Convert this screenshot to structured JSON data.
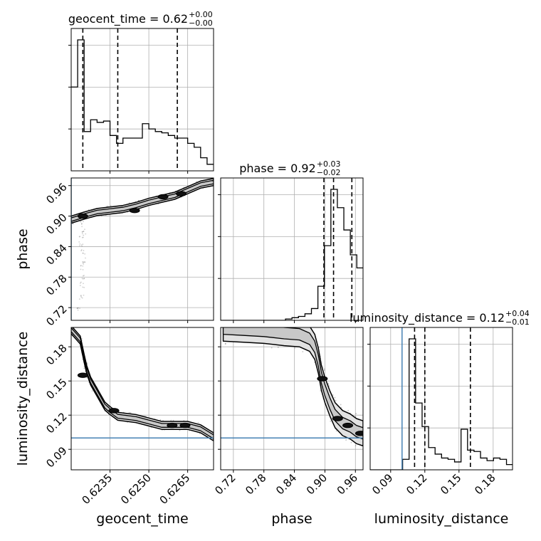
{
  "chart_data": {
    "type": "corner",
    "parameters": [
      "geocent_time",
      "phase",
      "luminosity_distance"
    ],
    "titles": [
      {
        "param": "geocent_time",
        "prefix": "geocent_time = 0.62",
        "plus": "+0.00",
        "minus": "−0.00"
      },
      {
        "param": "phase",
        "prefix": "phase = 0.92",
        "plus": "+0.03",
        "minus": "−0.02"
      },
      {
        "param": "luminosity_distance",
        "prefix": "luminosity_distance = 0.12",
        "plus": "+0.04",
        "minus": "−0.01"
      }
    ],
    "axis_labels": {
      "x": [
        "geocent_time",
        "phase",
        "luminosity_distance"
      ],
      "y": [
        "phase",
        "luminosity_distance"
      ]
    },
    "ranges": {
      "geocent_time": [
        0.622,
        0.6275
      ],
      "phase": [
        0.695,
        0.975
      ],
      "luminosity_distance": [
        0.072,
        0.197
      ]
    },
    "ticks": {
      "geocent_time": {
        "values": [
          0.6235,
          0.625,
          0.6265
        ],
        "labels": [
          "0.6235",
          "0.6250",
          "0.6265"
        ]
      },
      "phase": {
        "values": [
          0.72,
          0.78,
          0.84,
          0.9,
          0.96
        ],
        "labels": [
          "0.72",
          "0.78",
          "0.84",
          "0.90",
          "0.96"
        ]
      },
      "luminosity_distance": {
        "values": [
          0.09,
          0.12,
          0.15,
          0.18
        ],
        "labels": [
          "0.09",
          "0.12",
          "0.15",
          "0.18"
        ]
      }
    },
    "grid": true,
    "histograms": [
      {
        "param": "geocent_time",
        "edges": [
          0.622,
          0.62225,
          0.6225,
          0.62275,
          0.623,
          0.62325,
          0.6235,
          0.62375,
          0.624,
          0.62425,
          0.6245,
          0.62475,
          0.625,
          0.62525,
          0.6255,
          0.62575,
          0.626,
          0.62625,
          0.6265,
          0.62675,
          0.627,
          0.62725,
          0.6275
        ],
        "counts": [
          0.64,
          1.0,
          0.3,
          0.39,
          0.37,
          0.38,
          0.27,
          0.21,
          0.25,
          0.25,
          0.25,
          0.36,
          0.32,
          0.3,
          0.29,
          0.27,
          0.25,
          0.25,
          0.21,
          0.18,
          0.1,
          0.05
        ],
        "quantiles": [
          0.62245,
          0.6238,
          0.6261
        ]
      },
      {
        "param": "phase",
        "edges": [
          0.695,
          0.70775,
          0.7205,
          0.73325,
          0.746,
          0.75875,
          0.7715,
          0.78425,
          0.797,
          0.80975,
          0.8225,
          0.83525,
          0.848,
          0.86075,
          0.8735,
          0.88625,
          0.899,
          0.91175,
          0.9245,
          0.93725,
          0.95,
          0.96275,
          0.975
        ],
        "counts": [
          0.0,
          0.0,
          0.0,
          0.0,
          0.0,
          0.0,
          0.0,
          0.0,
          0.0,
          0.0,
          0.01,
          0.02,
          0.03,
          0.05,
          0.09,
          0.26,
          0.57,
          1.0,
          0.86,
          0.69,
          0.5,
          0.4
        ],
        "quantiles": [
          0.898,
          0.917,
          0.953
        ]
      },
      {
        "param": "luminosity_distance",
        "edges": [
          0.072,
          0.0777,
          0.0834,
          0.0891,
          0.0948,
          0.1005,
          0.1062,
          0.1119,
          0.1176,
          0.1233,
          0.129,
          0.1347,
          0.1404,
          0.1461,
          0.1518,
          0.1575,
          0.1632,
          0.1689,
          0.1746,
          0.1803,
          0.186,
          0.1917,
          0.197
        ],
        "counts": [
          0.0,
          0.0,
          0.0,
          0.0,
          0.0,
          0.08,
          1.0,
          0.51,
          0.33,
          0.17,
          0.12,
          0.09,
          0.08,
          0.06,
          0.31,
          0.15,
          0.14,
          0.09,
          0.07,
          0.09,
          0.08,
          0.04
        ],
        "quantiles": [
          0.111,
          0.12,
          0.16
        ],
        "truth": 0.1
      }
    ],
    "pairs": [
      {
        "x": "geocent_time",
        "y": "phase",
        "ridge": [
          [
            0.622,
            0.893
          ],
          [
            0.6225,
            0.901
          ],
          [
            0.623,
            0.908
          ],
          [
            0.6235,
            0.911
          ],
          [
            0.624,
            0.914
          ],
          [
            0.6245,
            0.92
          ],
          [
            0.625,
            0.928
          ],
          [
            0.6255,
            0.934
          ],
          [
            0.626,
            0.94
          ],
          [
            0.6265,
            0.951
          ],
          [
            0.627,
            0.962
          ],
          [
            0.6275,
            0.967
          ]
        ],
        "halfwidth_outer": 0.007,
        "halfwidth_inner": 0.0035,
        "tail": [
          [
            0.62245,
            0.885
          ],
          [
            0.6224,
            0.86
          ],
          [
            0.62245,
            0.83
          ],
          [
            0.6224,
            0.8
          ],
          [
            0.62245,
            0.78
          ],
          [
            0.6224,
            0.74
          ],
          [
            0.6223,
            0.715
          ],
          [
            0.6225,
            0.87
          ],
          [
            0.62238,
            0.845
          ],
          [
            0.62247,
            0.812
          ],
          [
            0.62242,
            0.765
          ]
        ],
        "blobs": [
          [
            0.62245,
            0.9
          ],
          [
            0.62445,
            0.911
          ],
          [
            0.62555,
            0.938
          ],
          [
            0.62625,
            0.944
          ]
        ],
        "truth_x": 0.622
      },
      {
        "x": "geocent_time",
        "y": "luminosity_distance",
        "ridge": [
          [
            0.622,
            0.195
          ],
          [
            0.62235,
            0.186
          ],
          [
            0.6225,
            0.17
          ],
          [
            0.6226,
            0.16
          ],
          [
            0.62275,
            0.15
          ],
          [
            0.623,
            0.14
          ],
          [
            0.6233,
            0.128
          ],
          [
            0.6235,
            0.124
          ],
          [
            0.6238,
            0.119
          ],
          [
            0.6245,
            0.117
          ],
          [
            0.625,
            0.114
          ],
          [
            0.6255,
            0.111
          ],
          [
            0.626,
            0.111
          ],
          [
            0.6265,
            0.111
          ],
          [
            0.627,
            0.108
          ],
          [
            0.6275,
            0.101
          ]
        ],
        "halfwidth_outer": 0.0035,
        "halfwidth_inner": 0.0017,
        "blobs": [
          [
            0.62245,
            0.155
          ],
          [
            0.62365,
            0.124
          ],
          [
            0.6259,
            0.111
          ],
          [
            0.6264,
            0.111
          ]
        ],
        "truth_y": 0.1
      },
      {
        "x": "phase",
        "y": "luminosity_distance",
        "ridge": [
          [
            0.7,
            0.196
          ],
          [
            0.74,
            0.195
          ],
          [
            0.78,
            0.194
          ],
          [
            0.82,
            0.192
          ],
          [
            0.85,
            0.191
          ],
          [
            0.87,
            0.187
          ],
          [
            0.88,
            0.18
          ],
          [
            0.887,
            0.168
          ],
          [
            0.893,
            0.153
          ],
          [
            0.9,
            0.142
          ],
          [
            0.91,
            0.13
          ],
          [
            0.92,
            0.12
          ],
          [
            0.935,
            0.113
          ],
          [
            0.95,
            0.11
          ],
          [
            0.962,
            0.106
          ],
          [
            0.975,
            0.104
          ]
        ],
        "halfwidth_outer": 0.011,
        "halfwidth_inner": 0.005,
        "blobs": [
          [
            0.895,
            0.152
          ],
          [
            0.925,
            0.117
          ],
          [
            0.945,
            0.111
          ],
          [
            0.97,
            0.104
          ]
        ],
        "truth_y": 0.1
      }
    ]
  }
}
